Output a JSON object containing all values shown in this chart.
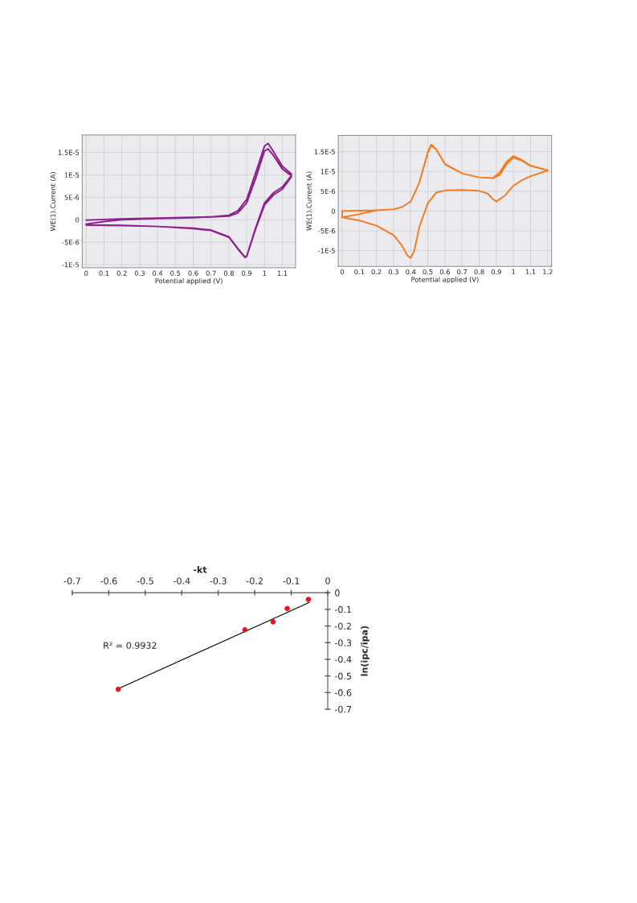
{
  "chart_data": [
    {
      "type": "line",
      "xlabel": "Potential applied (V)",
      "ylabel": "WE(1).Current (A)",
      "grid": true,
      "xlim": [
        -0.0225,
        1.174
      ],
      "ylim": [
        -1.07e-05,
        1.887e-05
      ],
      "xticks": [
        0,
        0.1,
        0.2,
        0.3,
        0.4,
        0.5,
        0.6,
        0.7,
        0.8,
        0.9,
        1,
        1.1
      ],
      "yticks": [
        {
          "value": -1e-05,
          "label": "-1E-5"
        },
        {
          "value": -5e-06,
          "label": "-5E-6"
        },
        0,
        {
          "value": 5e-06,
          "label": "5E-6"
        },
        {
          "value": 1e-05,
          "label": "1E-5"
        },
        {
          "value": 1.5e-05,
          "label": "1.5E-5"
        }
      ],
      "series": [
        {
          "color": "#8e1f8e",
          "x": [
            0,
            0.2,
            0.4,
            0.6,
            0.7,
            0.8,
            0.85,
            0.9,
            0.95,
            1.0,
            1.02,
            1.05,
            1.1,
            1.15,
            1.15,
            1.1,
            1.05,
            1.0,
            0.95,
            0.9,
            0.89,
            0.85,
            0.8,
            0.7,
            0.6,
            0.4,
            0.2,
            0,
            0,
            0.1,
            0.2,
            0.4,
            0.6,
            0.8,
            0.85,
            0.9,
            0.95,
            1.0,
            1.02,
            1.05,
            1.1,
            1.15,
            1.1,
            1.05,
            1.0,
            0.95,
            0.9,
            0.89,
            0.85,
            0.8,
            0.7,
            0.6,
            0.4,
            0.2,
            0
          ],
          "values": [
            -1e-07,
            2e-07,
            3.5e-07,
            5.5e-07,
            6.5e-07,
            1e-06,
            2e-06,
            4.5e-06,
            1.04e-05,
            1.64e-05,
            1.7e-05,
            1.52e-05,
            1.19e-05,
            1.02e-05,
            9.5e-06,
            6.8e-06,
            5.5e-06,
            3.3e-06,
            -2.1e-06,
            -8.2e-06,
            -8.4e-06,
            -6.5e-06,
            -3.9e-06,
            -2.4e-06,
            -2e-06,
            -1.5e-06,
            -1.3e-06,
            -1.2e-06,
            -1e-06,
            -4e-07,
            0,
            2.4e-07,
            4.2e-07,
            8e-07,
            1.5e-06,
            3.75e-06,
            9.2e-06,
            1.53e-05,
            1.58e-05,
            1.43e-05,
            1.13e-05,
            9.8e-06,
            7.3e-06,
            6e-06,
            3.75e-06,
            -1.8e-06,
            -8.1e-06,
            -8.3e-06,
            -6.4e-06,
            -3.8e-06,
            -2.3e-06,
            -1.9e-06,
            -1.5e-06,
            -1.25e-06,
            -1.15e-06
          ]
        }
      ]
    },
    {
      "type": "line",
      "xlabel": "Potential applied (V)",
      "ylabel": "WE(1).Current (A)",
      "grid": true,
      "xlim": [
        -0.023,
        1.223
      ],
      "ylim": [
        -1.4e-05,
        1.91e-05
      ],
      "xticks": [
        0,
        0.1,
        0.2,
        0.3,
        0.4,
        0.5,
        0.6,
        0.7,
        0.8,
        0.9,
        1,
        1.1,
        1.2
      ],
      "yticks": [
        {
          "value": -1e-05,
          "label": "-1E-5"
        },
        {
          "value": -5e-06,
          "label": "-5E-6"
        },
        0,
        {
          "value": 5e-06,
          "label": "5E-6"
        },
        {
          "value": 1e-05,
          "label": "1E-5"
        },
        {
          "value": 1.5e-05,
          "label": "1.5E-5"
        }
      ],
      "series": [
        {
          "color": "#f47b20",
          "x": [
            0,
            0.1,
            0.2,
            0.3,
            0.35,
            0.4,
            0.45,
            0.5,
            0.52,
            0.55,
            0.6,
            0.7,
            0.8,
            0.88,
            0.92,
            0.96,
            1.0,
            1.05,
            1.1,
            1.2,
            1.2,
            1.1,
            1.05,
            1.0,
            0.95,
            0.9,
            0.88,
            0.85,
            0.8,
            0.7,
            0.6,
            0.55,
            0.5,
            0.45,
            0.42,
            0.4,
            0.38,
            0.35,
            0.3,
            0.2,
            0.1,
            0,
            0,
            0.2,
            0.3,
            0.35,
            0.4,
            0.45,
            0.5,
            0.52,
            0.55,
            0.6,
            0.7,
            0.8,
            0.88,
            0.92,
            0.96,
            1.0,
            1.05,
            1.1,
            1.2
          ],
          "values": [
            -1.6e-06,
            -8e-07,
            2e-07,
            4.7e-07,
            1e-06,
            2.4e-06,
            7.1e-06,
            1.49e-05,
            1.68e-05,
            1.56e-05,
            1.19e-05,
            9.5e-06,
            8.5e-06,
            8.3e-06,
            9.8e-06,
            1.25e-05,
            1.39e-05,
            1.29e-05,
            1.15e-05,
            1.03e-05,
            1.02e-05,
            8.8e-06,
            7.8e-06,
            6.4e-06,
            3.9e-06,
            2.4e-06,
            3e-06,
            4.4e-06,
            5.1e-06,
            5.3e-06,
            5.2e-06,
            4.7e-06,
            2e-06,
            -4.1e-06,
            -1.02e-05,
            -1.19e-05,
            -1.12e-05,
            -8.8e-06,
            -6.1e-06,
            -3.7e-06,
            -2.4e-06,
            -1.6e-06,
            0,
            2e-07,
            4.7e-07,
            1e-06,
            2.4e-06,
            7.1e-06,
            1.47e-05,
            1.66e-05,
            1.55e-05,
            1.18e-05,
            9.5e-06,
            8.5e-06,
            8.3e-06,
            9.1e-06,
            1.19e-05,
            1.35e-05,
            1.27e-05,
            1.14e-05,
            1.03e-05
          ]
        }
      ]
    },
    {
      "type": "scatter",
      "xlabel": "-kt",
      "ylabel": "ln(ipc/ipa)",
      "grid": false,
      "xlim": [
        -0.7,
        0
      ],
      "ylim": [
        -0.7,
        0
      ],
      "xticks": [
        -0.7,
        -0.6,
        -0.5,
        -0.4,
        -0.3,
        -0.2,
        -0.1,
        0
      ],
      "yticks": [
        -0.7,
        -0.6,
        -0.5,
        -0.4,
        -0.3,
        -0.2,
        -0.1,
        0
      ],
      "annotations": [
        "R² = 0.9932"
      ],
      "series": [
        {
          "type": "scatter",
          "marker": "circle",
          "color": "#e8141e",
          "x": [
            -0.053,
            -0.111,
            -0.15,
            -0.227,
            -0.574
          ],
          "values": [
            -0.04,
            -0.095,
            -0.175,
            -0.223,
            -0.58
          ]
        },
        {
          "type": "line",
          "marker": "none",
          "color": "#000000",
          "x": [
            -0.574,
            -0.051
          ],
          "values": [
            -0.577,
            -0.059
          ]
        }
      ]
    }
  ]
}
